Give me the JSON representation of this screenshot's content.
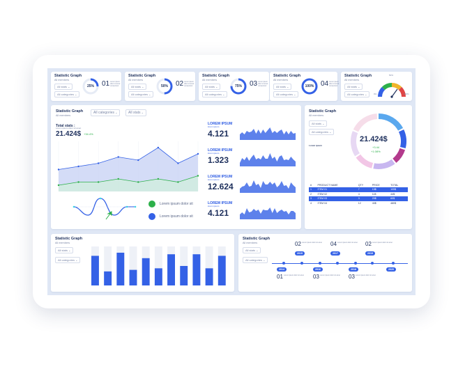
{
  "colors": {
    "accent": "#3461e6",
    "green": "#2db04a",
    "orange": "#f07a2a",
    "teal": "#1f9f8f",
    "pink": "#e8a3d9",
    "background": "#dfe7f5"
  },
  "kpi_cards": [
    {
      "title": "Statistic Graph",
      "subtitle": "All members",
      "filter1": "All stats",
      "filter2": "All categories",
      "percent": "25%",
      "value": 25,
      "number": "01",
      "desc": "Lorem ipsum dolor sit amet consectetur"
    },
    {
      "title": "Statistic Graph",
      "subtitle": "All members",
      "filter1": "All stats",
      "filter2": "All categories",
      "percent": "50%",
      "value": 50,
      "number": "02",
      "desc": "Lorem ipsum dolor sit amet consectetur"
    },
    {
      "title": "Statistic Graph",
      "subtitle": "All members",
      "filter1": "All stats",
      "filter2": "All categories",
      "percent": "75%",
      "value": 75,
      "number": "03",
      "desc": "Lorem ipsum dolor sit amet consectetur"
    },
    {
      "title": "Statistic Graph",
      "subtitle": "All members",
      "filter1": "All stats",
      "filter2": "All categories",
      "percent": "100%",
      "value": 100,
      "number": "04",
      "desc": "Lorem ipsum dolor sit amet consectetur"
    }
  ],
  "gauge_card": {
    "title": "Statistic Graph",
    "subtitle": "All members",
    "filter1": "All stats",
    "filter2": "All categories",
    "min": "0%",
    "max": "100%",
    "top": "50%",
    "level": 0.7
  },
  "main_card": {
    "title": "Statistic Graph",
    "subtitle": "All members",
    "filter1": "All categories",
    "filter2": "All stats",
    "total_label": "Total stats :",
    "total_sub": "Lorem ipsum dolor sit amet",
    "total_value": "21.424$",
    "total_change": "+34.4%",
    "legend": [
      {
        "label": "Lorem ipsum dolor sit",
        "color": "#2db04a"
      },
      {
        "label": "Lorem ipsum dolor sit",
        "color": "#3461e6"
      }
    ],
    "stats": [
      {
        "label": "LOREM IPSUM",
        "sub": "lorem ipsum",
        "value": "4.121"
      },
      {
        "label": "LOREM IPSUM",
        "sub": "lorem ipsum",
        "value": "1.323"
      },
      {
        "label": "LOREM IPSUM",
        "sub": "lorem ipsum",
        "value": "12.624"
      },
      {
        "label": "LOREM IPSUM",
        "sub": "lorem ipsum",
        "value": "4.121"
      }
    ]
  },
  "donut_card": {
    "title": "Statistic Graph",
    "subtitle": "All members",
    "filter1": "All stats",
    "filter2": "All categories",
    "center_value": "21.424$",
    "center_change1": "+3.44",
    "center_change2": "+1.08%",
    "legend_title": "Lorem ipsum",
    "legend": [
      {
        "label": "Lorem ipsum dolor sit",
        "color": "#f07a2a"
      },
      {
        "label": "Lorem ipsum dolor sit",
        "color": "#1d2f5c"
      },
      {
        "label": "Lorem ipsum dolor sit",
        "color": "#1f9f8f"
      },
      {
        "label": "Lorem ipsum dolor sit",
        "color": "#5ad2c5"
      }
    ],
    "table": {
      "headers": [
        "#",
        "PRODUCT NAME",
        "QTY",
        "PRICE",
        "TOTAL"
      ],
      "rows": [
        {
          "cells": [
            "1",
            "ITEM 01",
            "7",
            "15$",
            "105$"
          ],
          "highlight": true
        },
        {
          "cells": [
            "2",
            "ITEM 02",
            "4",
            "11$",
            "44$"
          ],
          "highlight": false
        },
        {
          "cells": [
            "3",
            "ITEM 03",
            "3",
            "20$",
            "60$"
          ],
          "highlight": true
        },
        {
          "cells": [
            "4",
            "ITEM 04",
            "12",
            "40$",
            "480$"
          ],
          "highlight": false
        }
      ]
    }
  },
  "bar_card": {
    "title": "Statistic Graph",
    "subtitle": "All members",
    "filter1": "All stats",
    "filter2": "All categories"
  },
  "timeline_card": {
    "title": "Statistic Graph",
    "subtitle": "All members",
    "filter1": "All stats",
    "filter2": "All categories",
    "years_top": [
      "2015",
      "2017",
      "2019"
    ],
    "years_bottom": [
      "2014",
      "2016",
      "2018",
      "2020"
    ],
    "nums_top": [
      "02",
      "04",
      "02"
    ],
    "nums_bottom": [
      "01",
      "03",
      "03"
    ]
  },
  "chart_data": [
    {
      "type": "area",
      "series": [
        {
          "values": [
            7,
            8,
            9,
            11,
            10,
            14,
            9,
            12
          ]
        },
        {
          "values": [
            2,
            3,
            3,
            4,
            3,
            4,
            3,
            5
          ]
        }
      ],
      "ylim": [
        0,
        16
      ]
    },
    {
      "type": "bar",
      "values": [
        38,
        18,
        42,
        20,
        35,
        22,
        40,
        25,
        40,
        22,
        38
      ],
      "ylim": [
        0,
        50
      ]
    },
    {
      "type": "pie",
      "values": [
        18,
        12,
        10,
        14,
        12,
        16,
        18
      ]
    }
  ]
}
